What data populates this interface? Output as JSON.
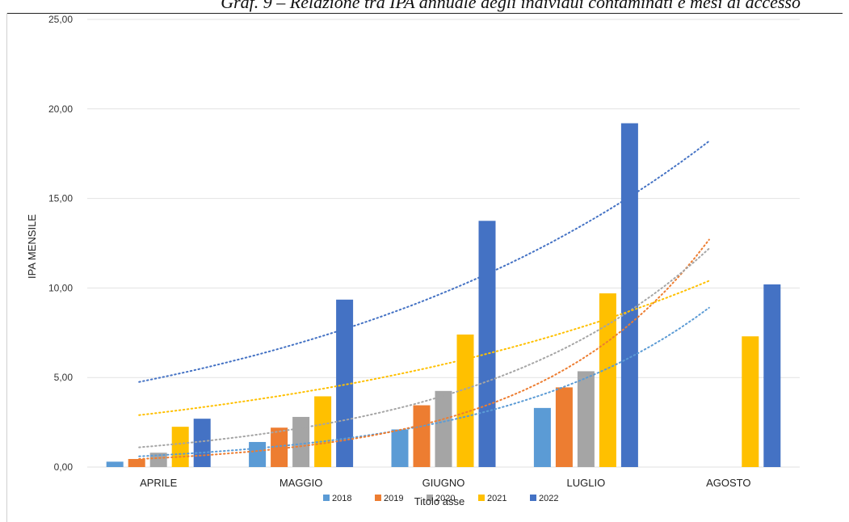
{
  "caption": "Graf. 9 – Relazione tra IPA annuale degli individui contaminati e mesi di accesso",
  "chart_data": {
    "type": "bar",
    "categories": [
      "APRILE",
      "MAGGIO",
      "GIUGNO",
      "LUGLIO",
      "AGOSTO"
    ],
    "series": [
      {
        "name": "2018",
        "color": "#5b9bd5",
        "values": [
          0.3,
          1.4,
          2.1,
          3.3,
          null
        ]
      },
      {
        "name": "2019",
        "color": "#ed7d31",
        "values": [
          0.45,
          2.2,
          3.45,
          4.45,
          null
        ]
      },
      {
        "name": "2020",
        "color": "#a5a5a5",
        "values": [
          0.8,
          2.8,
          4.25,
          5.35,
          null
        ]
      },
      {
        "name": "2021",
        "color": "#ffc000",
        "values": [
          2.25,
          3.95,
          7.4,
          9.7,
          7.3
        ]
      },
      {
        "name": "2022",
        "color": "#4472c4",
        "values": [
          2.7,
          9.35,
          13.75,
          19.2,
          10.2
        ]
      }
    ],
    "trendlines": [
      {
        "series": "2018",
        "from": 0.6,
        "to": 8.9
      },
      {
        "series": "2019",
        "from": 0.45,
        "to": 12.7
      },
      {
        "series": "2020",
        "from": 1.1,
        "to": 12.2
      },
      {
        "series": "2021",
        "from": 2.9,
        "to": 10.4
      },
      {
        "series": "2022",
        "from": 4.75,
        "to": 18.2
      }
    ],
    "ylabel": "IPA MENSILE",
    "xlabel": "Titolo asse",
    "ylim": [
      0,
      25
    ],
    "yticks": [
      "0,00",
      "5,00",
      "10,00",
      "15,00",
      "20,00",
      "25,00"
    ],
    "grid": true,
    "legend_position": "bottom"
  }
}
